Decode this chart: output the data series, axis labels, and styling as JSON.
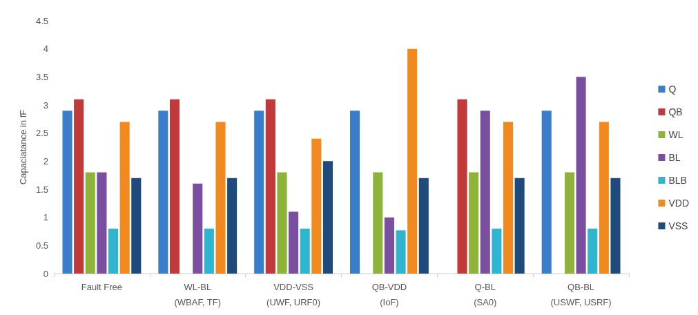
{
  "chart_data": {
    "type": "bar",
    "ylabel": "Capaciatance in fF",
    "categories": [
      "Fault Free",
      "WL-BL\n(WBAF, TF)",
      "VDD-VSS\n(UWF, URF0)",
      "QB-VDD\n(IoF)",
      "Q-BL\n(SA0)",
      "QB-BL\n(USWF, USRF)"
    ],
    "series": [
      {
        "name": "Q",
        "color": "#3a7dc9",
        "values": [
          2.9,
          2.9,
          2.9,
          2.9,
          null,
          2.9
        ]
      },
      {
        "name": "QB",
        "color": "#c0393b",
        "values": [
          3.1,
          3.1,
          3.1,
          null,
          3.1,
          null
        ]
      },
      {
        "name": "WL",
        "color": "#8db33a",
        "values": [
          1.8,
          null,
          1.8,
          1.8,
          1.8,
          1.8
        ]
      },
      {
        "name": "BL",
        "color": "#7b4fa0",
        "values": [
          1.8,
          1.6,
          1.1,
          1.0,
          2.9,
          3.5
        ]
      },
      {
        "name": "BLB",
        "color": "#2fb5cf",
        "values": [
          0.8,
          0.8,
          0.8,
          0.77,
          0.8,
          0.8
        ]
      },
      {
        "name": "VDD",
        "color": "#f08a1e",
        "values": [
          2.7,
          2.7,
          2.4,
          4.0,
          2.7,
          2.7
        ]
      },
      {
        "name": "VSS",
        "color": "#1f4a7c",
        "values": [
          1.7,
          1.7,
          2.0,
          1.7,
          1.7,
          1.7
        ]
      }
    ],
    "ylim": [
      0,
      4.5
    ],
    "yticks": [
      0,
      0.5,
      1,
      1.5,
      2,
      2.5,
      3,
      3.5,
      4,
      4.5
    ],
    "grid": false,
    "legend": "right"
  }
}
